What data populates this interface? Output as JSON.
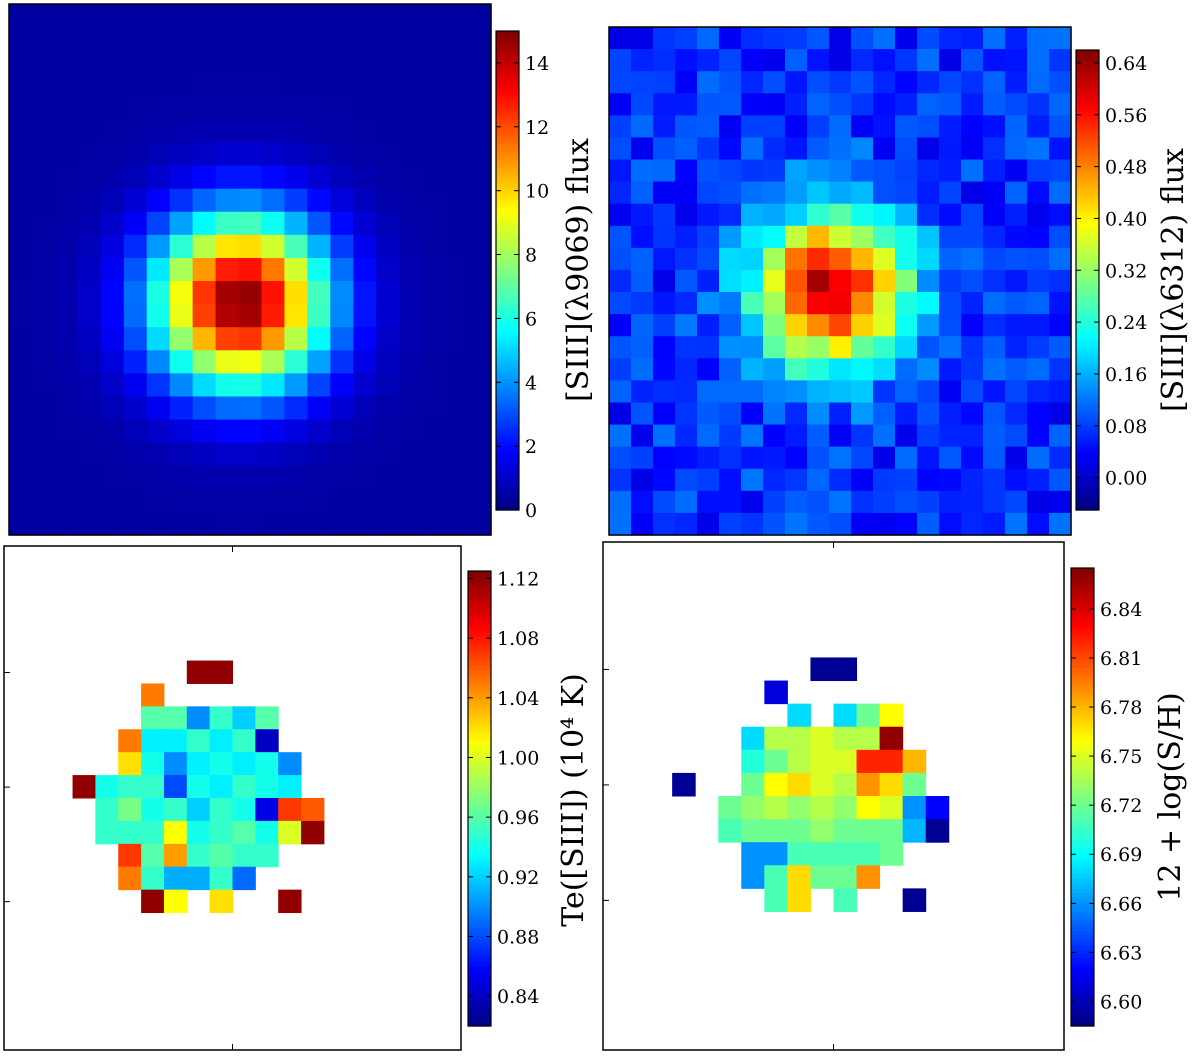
{
  "chart_data": [
    {
      "id": "panel-siii-9069",
      "type": "heatmap",
      "colormap": "jet",
      "colorbar_label": "[SIII](λ9069) flux",
      "colorbar_range": [
        0,
        15
      ],
      "colorbar_ticks": [
        0,
        2,
        4,
        6,
        8,
        10,
        12,
        14
      ],
      "colorbar_tick_labels": [
        "0",
        "2",
        "4",
        "6",
        "8",
        "10",
        "12",
        "14"
      ],
      "grid": {
        "nx": 21,
        "ny": 23,
        "center_x": 9.6,
        "center_y": 12.4,
        "peak": 15.0,
        "sigma": 2.6,
        "background": 0.5,
        "noise": 0.0
      }
    },
    {
      "id": "panel-siii-6312",
      "type": "heatmap",
      "colormap": "jet",
      "colorbar_label": "[SIII](λ6312) flux",
      "colorbar_range": [
        -0.05,
        0.66
      ],
      "colorbar_ticks": [
        0.0,
        0.08,
        0.16,
        0.24,
        0.32,
        0.4,
        0.48,
        0.56,
        0.64
      ],
      "colorbar_tick_labels": [
        "0.00",
        "0.08",
        "0.16",
        "0.24",
        "0.32",
        "0.40",
        "0.48",
        "0.56",
        "0.64"
      ],
      "grid": {
        "nx": 21,
        "ny": 23,
        "center_x": 9.6,
        "center_y": 11.4,
        "peak": 0.62,
        "sigma": 2.4,
        "background": 0.07,
        "noise": 0.05
      }
    },
    {
      "id": "panel-te-siii",
      "type": "heatmap",
      "colormap": "jet",
      "colorbar_label": "Te([SIII]) (10⁴ K)",
      "colorbar_range": [
        0.82,
        1.125
      ],
      "colorbar_ticks": [
        0.84,
        0.88,
        0.92,
        0.96,
        1.0,
        1.04,
        1.08,
        1.12
      ],
      "colorbar_tick_labels": [
        "0.84",
        "0.88",
        "0.92",
        "0.96",
        "1.00",
        "1.04",
        "1.08",
        "1.12"
      ],
      "masked_map": {
        "nx": 20,
        "ny": 22,
        "cells": [
          [
            8,
            5,
            1.12
          ],
          [
            9,
            5,
            1.12
          ],
          [
            6,
            6,
            1.05
          ],
          [
            6,
            7,
            0.96
          ],
          [
            7,
            7,
            0.96
          ],
          [
            8,
            7,
            0.9
          ],
          [
            9,
            7,
            0.95
          ],
          [
            10,
            7,
            0.92
          ],
          [
            11,
            7,
            0.96
          ],
          [
            5,
            8,
            1.05
          ],
          [
            6,
            8,
            0.93
          ],
          [
            7,
            8,
            0.93
          ],
          [
            8,
            8,
            0.95
          ],
          [
            9,
            8,
            0.93
          ],
          [
            10,
            8,
            0.95
          ],
          [
            11,
            8,
            0.84
          ],
          [
            5,
            9,
            1.02
          ],
          [
            6,
            9,
            0.94
          ],
          [
            7,
            9,
            0.9
          ],
          [
            8,
            9,
            0.93
          ],
          [
            9,
            9,
            0.94
          ],
          [
            10,
            9,
            0.93
          ],
          [
            11,
            9,
            0.94
          ],
          [
            12,
            9,
            0.9
          ],
          [
            3,
            10,
            1.12
          ],
          [
            4,
            10,
            0.94
          ],
          [
            5,
            10,
            0.95
          ],
          [
            6,
            10,
            0.95
          ],
          [
            7,
            10,
            0.88
          ],
          [
            8,
            10,
            0.94
          ],
          [
            9,
            10,
            0.93
          ],
          [
            10,
            10,
            0.95
          ],
          [
            11,
            10,
            0.94
          ],
          [
            12,
            10,
            0.93
          ],
          [
            4,
            11,
            0.95
          ],
          [
            5,
            11,
            0.97
          ],
          [
            6,
            11,
            0.94
          ],
          [
            7,
            11,
            0.95
          ],
          [
            8,
            11,
            0.92
          ],
          [
            9,
            11,
            0.95
          ],
          [
            10,
            11,
            0.94
          ],
          [
            11,
            11,
            0.85
          ],
          [
            12,
            11,
            1.07
          ],
          [
            13,
            11,
            1.06
          ],
          [
            4,
            12,
            0.95
          ],
          [
            5,
            12,
            0.95
          ],
          [
            6,
            12,
            0.95
          ],
          [
            7,
            12,
            1.01
          ],
          [
            8,
            12,
            0.94
          ],
          [
            9,
            12,
            0.95
          ],
          [
            10,
            12,
            0.96
          ],
          [
            11,
            12,
            0.94
          ],
          [
            12,
            12,
            1.0
          ],
          [
            13,
            12,
            1.12
          ],
          [
            5,
            13,
            1.07
          ],
          [
            6,
            13,
            0.96
          ],
          [
            7,
            13,
            1.04
          ],
          [
            8,
            13,
            0.95
          ],
          [
            9,
            13,
            0.96
          ],
          [
            10,
            13,
            0.95
          ],
          [
            11,
            13,
            0.95
          ],
          [
            5,
            14,
            1.05
          ],
          [
            6,
            14,
            0.95
          ],
          [
            7,
            14,
            0.91
          ],
          [
            8,
            14,
            0.91
          ],
          [
            9,
            14,
            0.95
          ],
          [
            10,
            14,
            0.89
          ],
          [
            6,
            15,
            1.12
          ],
          [
            7,
            15,
            1.01
          ],
          [
            9,
            15,
            1.02
          ],
          [
            12,
            15,
            1.12
          ]
        ]
      }
    },
    {
      "id": "panel-s-abundance",
      "type": "heatmap",
      "colormap": "jet",
      "colorbar_label": "12 + log(S/H)",
      "colorbar_range": [
        6.585,
        6.865
      ],
      "colorbar_ticks": [
        6.6,
        6.63,
        6.66,
        6.69,
        6.72,
        6.75,
        6.78,
        6.81,
        6.84
      ],
      "colorbar_tick_labels": [
        "6.60",
        "6.63",
        "6.66",
        "6.69",
        "6.72",
        "6.75",
        "6.78",
        "6.81",
        "6.84"
      ],
      "masked_map": {
        "nx": 20,
        "ny": 22,
        "cells": [
          [
            9,
            5,
            6.59
          ],
          [
            10,
            5,
            6.59
          ],
          [
            7,
            6,
            6.61
          ],
          [
            8,
            7,
            6.68
          ],
          [
            10,
            7,
            6.68
          ],
          [
            11,
            7,
            6.72
          ],
          [
            12,
            7,
            6.76
          ],
          [
            6,
            8,
            6.68
          ],
          [
            7,
            8,
            6.74
          ],
          [
            8,
            8,
            6.74
          ],
          [
            9,
            8,
            6.75
          ],
          [
            10,
            8,
            6.74
          ],
          [
            11,
            8,
            6.74
          ],
          [
            12,
            8,
            6.86
          ],
          [
            6,
            9,
            6.7
          ],
          [
            7,
            9,
            6.72
          ],
          [
            8,
            9,
            6.74
          ],
          [
            9,
            9,
            6.75
          ],
          [
            10,
            9,
            6.75
          ],
          [
            11,
            9,
            6.82
          ],
          [
            12,
            9,
            6.82
          ],
          [
            13,
            9,
            6.78
          ],
          [
            3,
            10,
            6.59
          ],
          [
            6,
            10,
            6.72
          ],
          [
            7,
            10,
            6.76
          ],
          [
            8,
            10,
            6.77
          ],
          [
            9,
            10,
            6.75
          ],
          [
            10,
            10,
            6.74
          ],
          [
            11,
            10,
            6.79
          ],
          [
            12,
            10,
            6.77
          ],
          [
            13,
            10,
            6.72
          ],
          [
            5,
            11,
            6.72
          ],
          [
            6,
            11,
            6.73
          ],
          [
            7,
            11,
            6.74
          ],
          [
            8,
            11,
            6.73
          ],
          [
            9,
            11,
            6.74
          ],
          [
            10,
            11,
            6.73
          ],
          [
            11,
            11,
            6.76
          ],
          [
            12,
            11,
            6.75
          ],
          [
            13,
            11,
            6.66
          ],
          [
            14,
            11,
            6.62
          ],
          [
            5,
            12,
            6.71
          ],
          [
            6,
            12,
            6.72
          ],
          [
            7,
            12,
            6.72
          ],
          [
            8,
            12,
            6.72
          ],
          [
            9,
            12,
            6.73
          ],
          [
            10,
            12,
            6.72
          ],
          [
            11,
            12,
            6.72
          ],
          [
            12,
            12,
            6.72
          ],
          [
            13,
            12,
            6.67
          ],
          [
            14,
            12,
            6.59
          ],
          [
            6,
            13,
            6.66
          ],
          [
            7,
            13,
            6.66
          ],
          [
            8,
            13,
            6.71
          ],
          [
            9,
            13,
            6.71
          ],
          [
            10,
            13,
            6.71
          ],
          [
            11,
            13,
            6.71
          ],
          [
            12,
            13,
            6.72
          ],
          [
            6,
            14,
            6.66
          ],
          [
            7,
            14,
            6.71
          ],
          [
            8,
            14,
            6.77
          ],
          [
            9,
            14,
            6.72
          ],
          [
            10,
            14,
            6.72
          ],
          [
            11,
            14,
            6.79
          ],
          [
            7,
            15,
            6.71
          ],
          [
            8,
            15,
            6.77
          ],
          [
            10,
            15,
            6.71
          ],
          [
            13,
            15,
            6.59
          ]
        ]
      }
    }
  ]
}
